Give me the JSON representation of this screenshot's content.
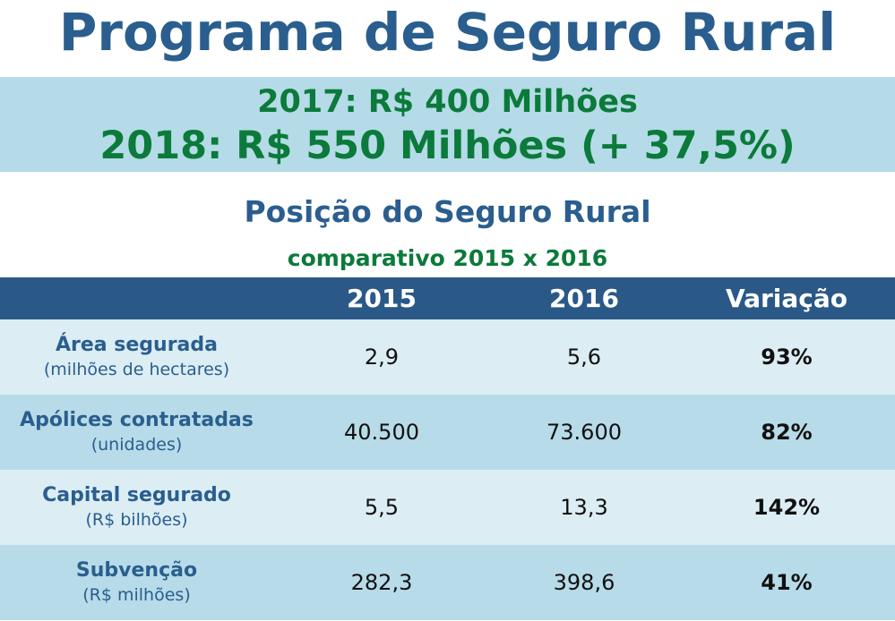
{
  "title": "Programa de Seguro Rural",
  "budget": {
    "line_2017": "2017: R$ 400 Milhões",
    "line_2018": "2018: R$ 550 Milhões (+ 37,5%)"
  },
  "section": {
    "title": "Posição do Seguro Rural",
    "subtitle": "comparativo 2015 x 2016"
  },
  "table": {
    "headers": [
      "",
      "2015",
      "2016",
      "Variação"
    ],
    "rows": [
      {
        "label": "Área segurada",
        "unit": "(milhões de hectares)",
        "v2015": "2,9",
        "v2016": "5,6",
        "variation": "93%"
      },
      {
        "label": "Apólices contratadas",
        "unit": "(unidades)",
        "v2015": "40.500",
        "v2016": "73.600",
        "variation": "82%"
      },
      {
        "label": "Capital segurado",
        "unit": "(R$ bilhões)",
        "v2015": "5,5",
        "v2016": "13,3",
        "variation": "142%"
      },
      {
        "label": "Subvenção",
        "unit": "(R$ milhões)",
        "v2015": "282,3",
        "v2016": "398,6",
        "variation": "41%"
      }
    ]
  },
  "colors": {
    "title_blue": "#2a5e8e",
    "green": "#0b7a3a",
    "header_bg": "#2a5988",
    "row_light": "#dcedf4",
    "row_dark": "#b7dbe8"
  }
}
